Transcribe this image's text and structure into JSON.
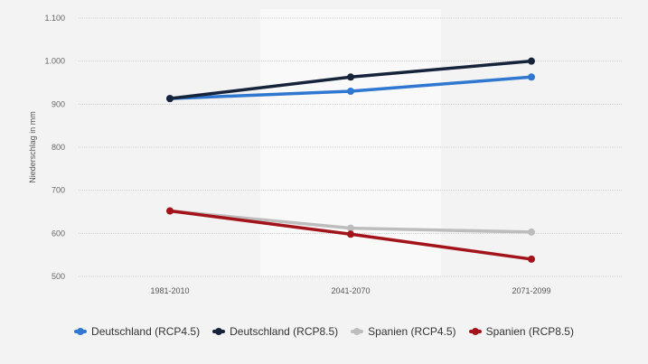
{
  "chart_data": {
    "type": "line",
    "title": "",
    "xlabel": "",
    "ylabel": "Niederschlag in mm",
    "categories": [
      "1981-2010",
      "2041-2070",
      "2071-2099"
    ],
    "ylim": [
      500,
      1100
    ],
    "yticks": [
      500,
      600,
      700,
      800,
      900,
      1000,
      1100
    ],
    "ytick_labels": [
      "500",
      "600",
      "700",
      "800",
      "900",
      "1.000",
      "1.100"
    ],
    "grid": true,
    "legend_position": "bottom",
    "series": [
      {
        "name": "Deutschland (RCP4.5)",
        "color": "#2f77d0",
        "values": [
          913,
          930,
          963
        ]
      },
      {
        "name": "Deutschland (RCP8.5)",
        "color": "#15243a",
        "values": [
          913,
          963,
          1000
        ]
      },
      {
        "name": "Spanien (RCP4.5)",
        "color": "#bdbdbd",
        "values": [
          652,
          612,
          603
        ]
      },
      {
        "name": "Spanien (RCP8.5)",
        "color": "#a3131a",
        "values": [
          652,
          598,
          540
        ]
      }
    ]
  }
}
